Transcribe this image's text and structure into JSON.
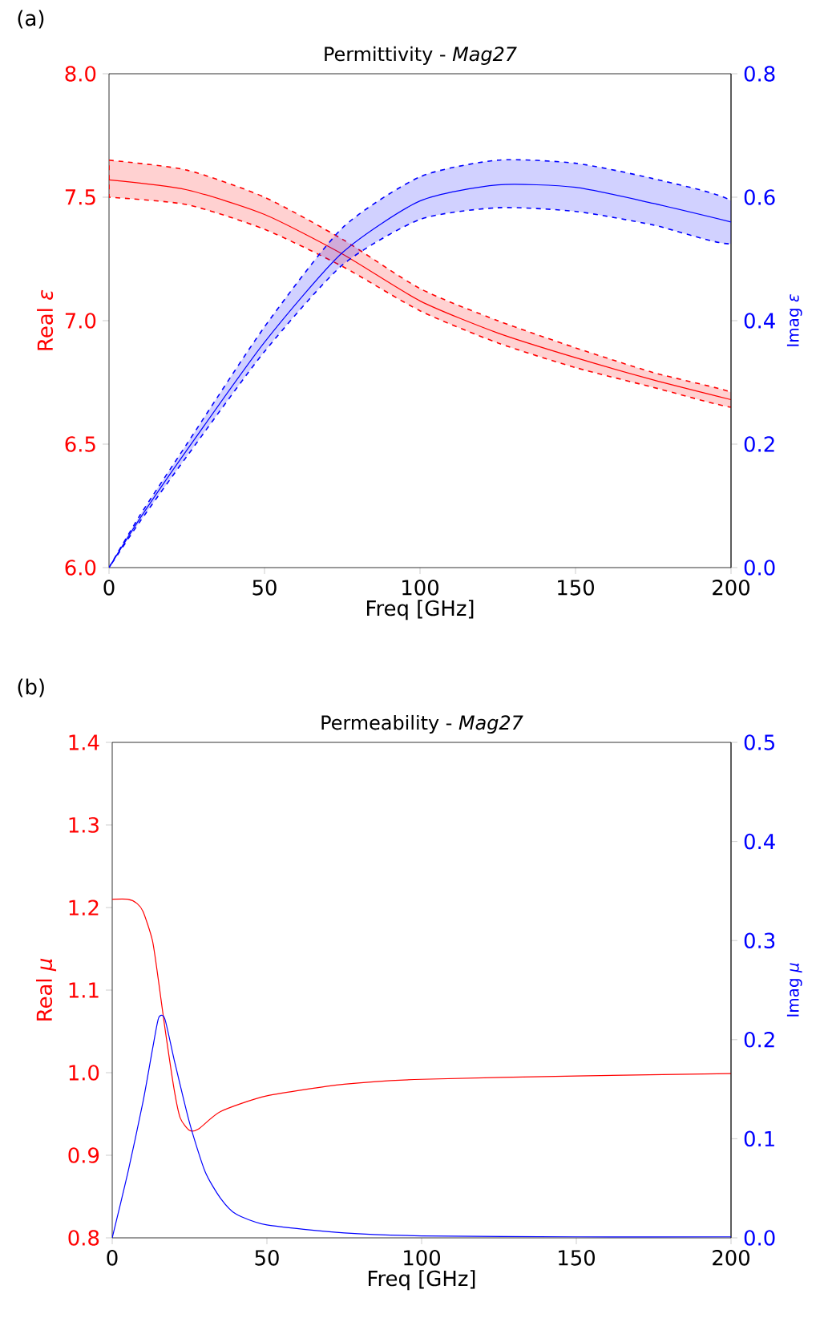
{
  "chart_data": [
    {
      "type": "line",
      "title": "Permittivity - *Mag27*",
      "xlabel": "Freq [GHz]",
      "ylabel": "Real *ε*",
      "y2label": "Imag *ε*",
      "annotations": [
        "(a)"
      ],
      "xlim": [
        0,
        200
      ],
      "xticks": [
        0,
        50,
        100,
        150,
        200
      ],
      "ylim": [
        6,
        8
      ],
      "yticks": [
        {
          "value": 6,
          "label": "6.0"
        },
        6.5,
        {
          "value": 7,
          "label": "7.0"
        },
        7.5,
        {
          "value": 8,
          "label": "8.0"
        }
      ],
      "y2lim": [
        0,
        0.8
      ],
      "y2ticks": [
        {
          "value": 0,
          "label": "0.0"
        },
        0.2,
        0.4,
        0.6,
        0.8
      ],
      "series": [
        {
          "color": "#ff0000",
          "x": [
            0,
            25,
            50,
            75,
            100,
            125,
            150,
            175,
            200
          ],
          "values": [
            7.57,
            7.53,
            7.43,
            7.27,
            7.08,
            6.95,
            6.85,
            6.76,
            6.68
          ],
          "upper": [
            7.65,
            7.61,
            7.5,
            7.33,
            7.13,
            7.0,
            6.89,
            6.79,
            6.71
          ],
          "lower": [
            7.5,
            7.47,
            7.37,
            7.22,
            7.04,
            6.91,
            6.81,
            6.73,
            6.65
          ]
        },
        {
          "color": "#0000ff",
          "axis": "y2",
          "x": [
            0,
            10,
            25,
            50,
            75,
            100,
            125,
            150,
            175,
            200
          ],
          "values": [
            0,
            0.08,
            0.19,
            0.365,
            0.51,
            0.594,
            0.62,
            0.616,
            0.59,
            0.56
          ],
          "upper": [
            0,
            0.085,
            0.2,
            0.39,
            0.55,
            0.633,
            0.66,
            0.655,
            0.63,
            0.594
          ],
          "lower": [
            0,
            0.075,
            0.18,
            0.35,
            0.49,
            0.564,
            0.583,
            0.577,
            0.555,
            0.525
          ]
        }
      ]
    },
    {
      "type": "line",
      "title": "Permeability - *Mag27*",
      "xlabel": "Freq [GHz]",
      "ylabel": "Real *μ*",
      "y2label": "Imag *μ*",
      "annotations": [
        "(b)"
      ],
      "xlim": [
        0,
        200
      ],
      "xticks": [
        0,
        50,
        100,
        150,
        200
      ],
      "ylim": [
        0.8,
        1.4
      ],
      "yticks": [
        0.8,
        0.9,
        {
          "value": 1,
          "label": "1.0"
        },
        1.1,
        1.2,
        1.3,
        1.4
      ],
      "y2lim": [
        0,
        0.5
      ],
      "y2ticks": [
        {
          "value": 0,
          "label": "0.0"
        },
        0.1,
        0.2,
        0.3,
        0.4,
        0.5
      ],
      "series": [
        {
          "color": "#ff0000",
          "x": [
            0,
            5,
            8,
            10,
            13,
            15,
            17,
            20,
            22,
            25,
            28,
            35,
            50,
            75,
            100,
            150,
            200
          ],
          "values": [
            1.21,
            1.21,
            1.205,
            1.195,
            1.16,
            1.11,
            1.055,
            0.98,
            0.945,
            0.93,
            0.932,
            0.953,
            0.972,
            0.986,
            0.992,
            0.996,
            0.999
          ]
        },
        {
          "color": "#0000ff",
          "axis": "y2",
          "x": [
            0,
            5,
            10,
            13,
            15,
            17,
            20,
            25,
            30,
            35,
            40,
            50,
            75,
            100,
            150,
            200
          ],
          "values": [
            0,
            0.065,
            0.138,
            0.19,
            0.222,
            0.221,
            0.18,
            0.116,
            0.067,
            0.04,
            0.024,
            0.013,
            0.005,
            0.002,
            0.001,
            0.001
          ]
        }
      ]
    }
  ]
}
